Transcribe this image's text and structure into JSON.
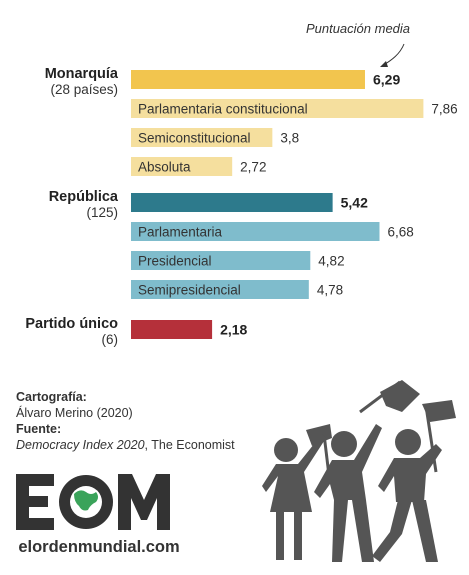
{
  "chart_data": {
    "type": "bar",
    "orientation": "horizontal",
    "annotation": "Puntuación media",
    "groups": [
      {
        "name": "Monarquía",
        "sub": "(28 países)",
        "value": 6.29,
        "value_label": "6,29",
        "color": "#f2c54e",
        "subtypes": [
          {
            "name": "Parlamentaria constitucional",
            "value": 7.86,
            "value_label": "7,86"
          },
          {
            "name": "Semiconstitucional",
            "value": 3.8,
            "value_label": "3,8"
          },
          {
            "name": "Absoluta",
            "value": 2.72,
            "value_label": "2,72"
          }
        ],
        "sub_color": "#f5df9e"
      },
      {
        "name": "República",
        "sub": "(125)",
        "value": 5.42,
        "value_label": "5,42",
        "color": "#2d7a8c",
        "subtypes": [
          {
            "name": "Parlamentaria",
            "value": 6.68,
            "value_label": "6,68"
          },
          {
            "name": "Presidencial",
            "value": 4.82,
            "value_label": "4,82"
          },
          {
            "name": "Semipresidencial",
            "value": 4.78,
            "value_label": "4,78"
          }
        ],
        "sub_color": "#7fbccc"
      },
      {
        "name": "Partido único",
        "sub": "(6)",
        "value": 2.18,
        "value_label": "2,18",
        "color": "#b5303a",
        "subtypes": [],
        "sub_color": "#b5303a"
      }
    ]
  },
  "credits": {
    "carto_label": "Cartografía:",
    "carto_value": "Álvaro Merino (2020)",
    "source_label": "Fuente:",
    "source_italic": "Democracy Index 2020",
    "source_rest": ", The Economist"
  },
  "logo": {
    "letters": "EOM",
    "url_text": "elordenmundial.com",
    "color": "#333333",
    "accent": "#3aa35a"
  },
  "illustration": {
    "icon": "protest-flags-icon",
    "color": "#555555"
  }
}
